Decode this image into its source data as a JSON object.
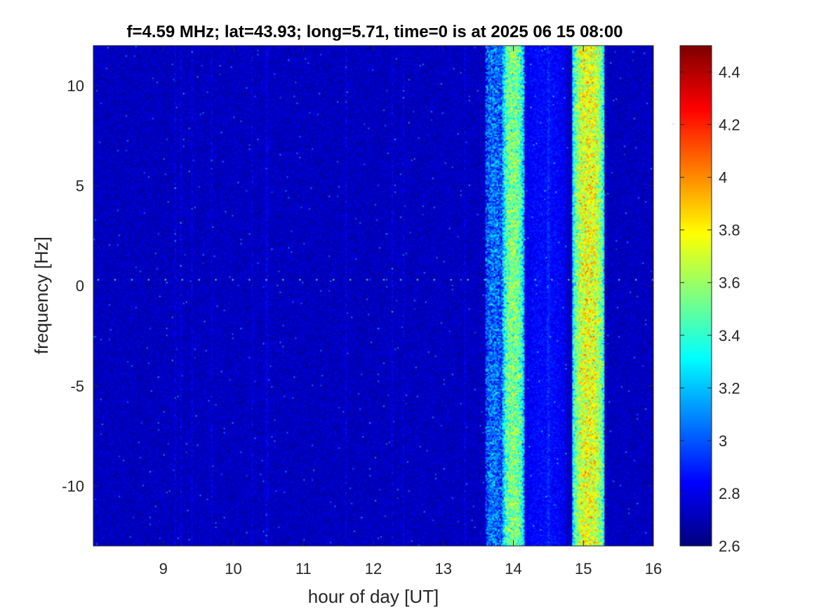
{
  "chart_data": {
    "type": "heatmap",
    "title": "f=4.59 MHz;  lat=43.93; long=5.71, time=0 is at 2025 06 15 08:00",
    "xlabel": "hour of day [UT]",
    "ylabel": "frequency [Hz]",
    "xlim": [
      8.0,
      16.0
    ],
    "ylim": [
      -13.0,
      12.0
    ],
    "xticks": [
      9,
      10,
      11,
      12,
      13,
      14,
      15,
      16
    ],
    "xtick_labels": [
      "9",
      "10",
      "11",
      "12",
      "13",
      "14",
      "15",
      "16"
    ],
    "yticks": [
      10,
      5,
      0,
      -5,
      -10
    ],
    "ytick_labels": [
      "10",
      "5",
      "0",
      "-5",
      "-10"
    ],
    "colormap": "jet",
    "clim": [
      2.6,
      4.5
    ],
    "colorbar_ticks": [
      4.4,
      4.2,
      4,
      3.8,
      3.6,
      3.4,
      3.2,
      3,
      2.8,
      2.6
    ],
    "colorbar_tick_labels": [
      "4.4",
      "4.2",
      "4",
      "3.8",
      "3.6",
      "3.4",
      "3.2",
      "3",
      "2.8",
      "2.6"
    ],
    "background_level": 2.72,
    "bands": [
      {
        "x_start": 13.6,
        "x_end": 13.85,
        "level": 3.05
      },
      {
        "x_start": 13.85,
        "x_end": 14.15,
        "level": 3.55
      },
      {
        "x_start": 14.15,
        "x_end": 14.75,
        "level": 2.85
      },
      {
        "x_start": 14.85,
        "x_end": 15.3,
        "level": 3.75
      }
    ],
    "carrier_line": {
      "frequency": 0.3,
      "level": 3.5
    },
    "grid": false
  }
}
